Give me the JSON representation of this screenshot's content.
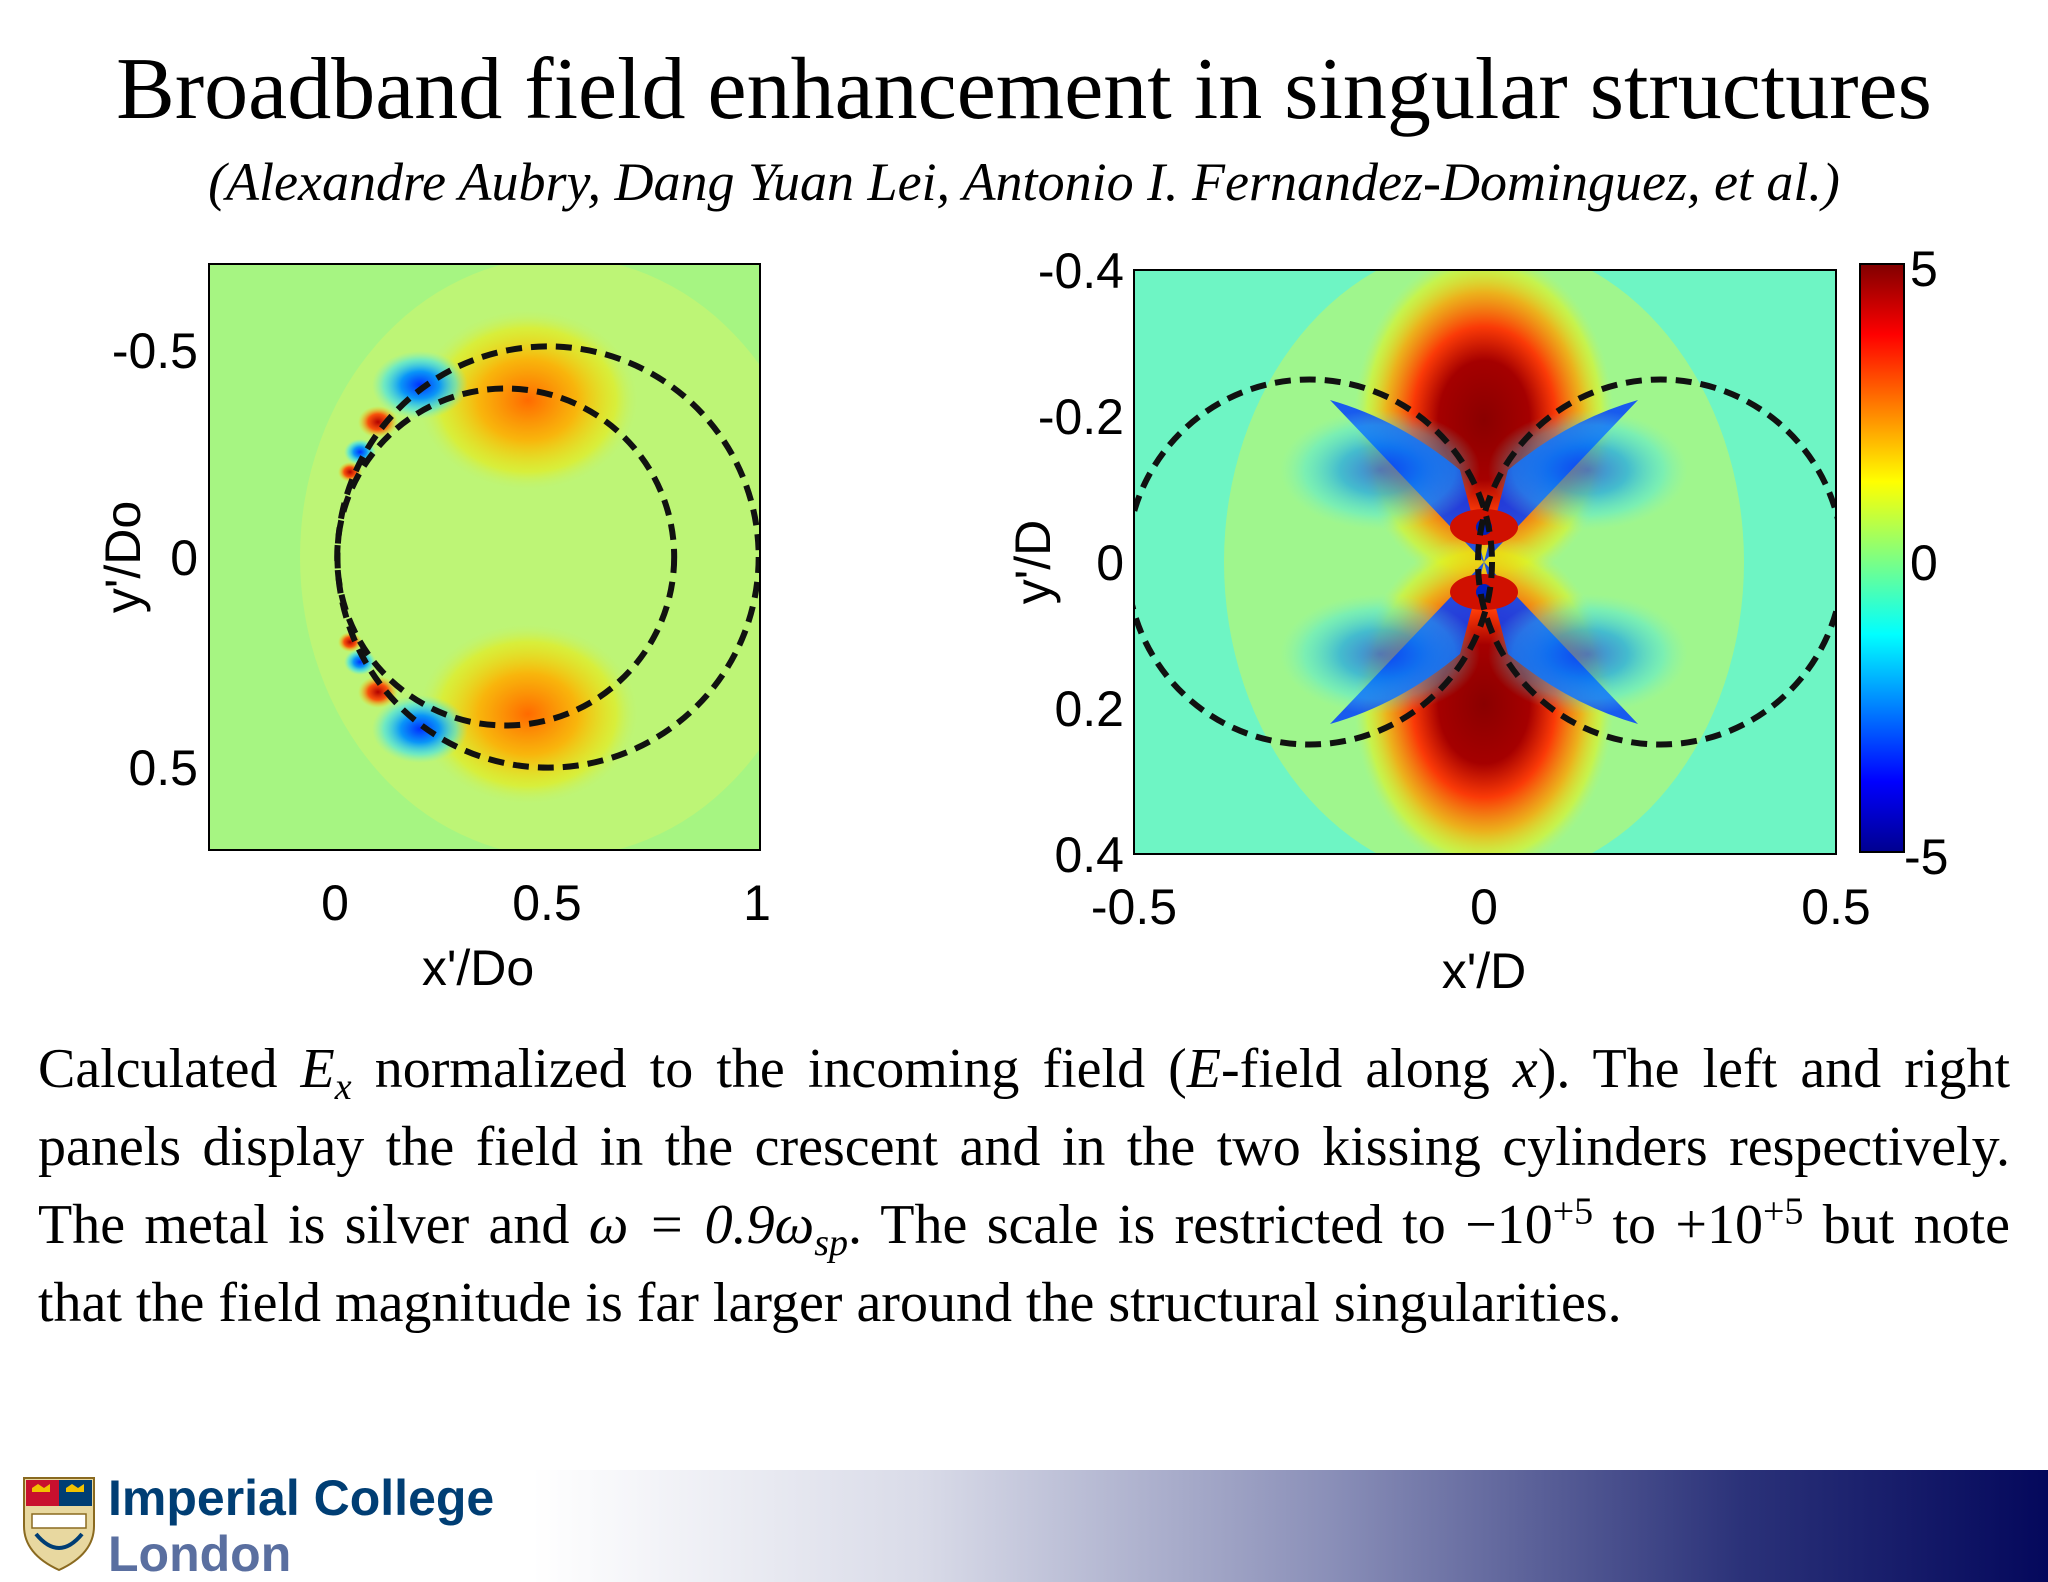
{
  "slide": {
    "title": "Broadband field enhancement in singular structures",
    "authors": "(Alexandre Aubry, Dang Yuan Lei, Antonio I. Fernandez-Dominguez, et al.)"
  },
  "chart_data": [
    {
      "type": "heatmap",
      "panel": "left",
      "description_quantity": "Ex normalized to incoming field",
      "xlabel": "x'/Do",
      "ylabel": "y'/Do",
      "xlim": [
        -0.3,
        1.0
      ],
      "ylim": [
        0.7,
        -0.7
      ],
      "xticks": [
        "0",
        "0.5",
        "1"
      ],
      "yticks": [
        "-0.5",
        "0",
        "0.5"
      ],
      "xtick_values": [
        0,
        0.5,
        1
      ],
      "ytick_values": [
        -0.5,
        0,
        0.5
      ],
      "structure": "crescent",
      "outer_circle": {
        "cx": 0.5,
        "cy": 0,
        "r": 0.5
      },
      "inner_circle": {
        "cx": 0.4,
        "cy": 0,
        "r": 0.4
      },
      "clim": [
        -5,
        5
      ]
    },
    {
      "type": "heatmap",
      "panel": "right",
      "description_quantity": "Ex normalized to incoming field",
      "xlabel": "x'/D",
      "ylabel": "y'/D",
      "xlim": [
        -0.5,
        0.5
      ],
      "ylim": [
        -0.4,
        0.4
      ],
      "xticks": [
        "-0.5",
        "0",
        "0.5"
      ],
      "yticks": [
        "-0.4",
        "-0.2",
        "0",
        "0.2",
        "0.4"
      ],
      "xtick_values": [
        -0.5,
        0,
        0.5
      ],
      "ytick_values": [
        -0.4,
        -0.2,
        0,
        0.2,
        0.4
      ],
      "structure": "two kissing cylinders",
      "left_circle": {
        "cx": -0.25,
        "cy": 0,
        "r": 0.25
      },
      "right_circle": {
        "cx": 0.25,
        "cy": 0,
        "r": 0.25
      },
      "clim": [
        -5,
        5
      ]
    }
  ],
  "colorbar": {
    "colormap": "jet",
    "ticks": [
      "5",
      "0",
      "-5"
    ],
    "values": [
      5,
      0,
      -5
    ]
  },
  "caption": {
    "w_calculated": "Calculated",
    "E": "E",
    "x_sub": "x",
    "w_normalized": "normalized to the incoming field (",
    "E2": "E",
    "w_field_along": "-field along",
    "x2": "x",
    "w_rest1": "). The left and right panels display the field in the crescent and in the two kissing cylinders respectively. The metal is silver and",
    "omega": "ω = 0.9ω",
    "sp": "sp",
    "w_rest2": ". The scale is restricted to",
    "range_from": "−10",
    "exp1": "+5",
    "to": "to +10",
    "exp2": "+5",
    "w_rest3": "but note that the field magnitude is far larger around the structural singularities."
  },
  "footer": {
    "logo_line1": "Imperial College",
    "logo_line2": "London",
    "band_colors": [
      "#ffffff",
      "#04085c"
    ]
  }
}
